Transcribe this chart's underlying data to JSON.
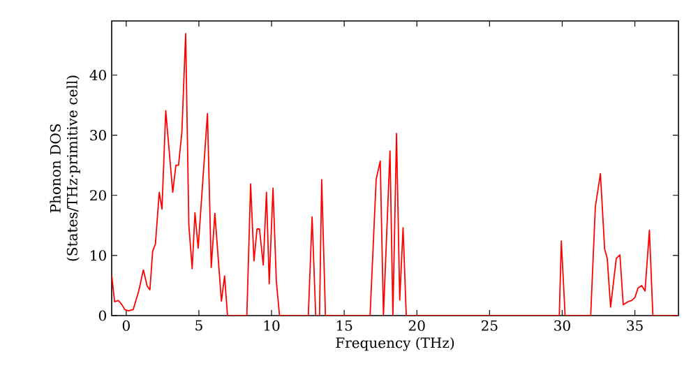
{
  "chart_data": {
    "type": "line",
    "xlabel": "Frequency (THz)",
    "ylabel": "Phonon DOS (States/THz·primitive cell)",
    "xlim": [
      -1,
      38
    ],
    "ylim": [
      0,
      49
    ],
    "xticks": [
      0,
      5,
      10,
      15,
      20,
      25,
      30,
      35
    ],
    "yticks": [
      0,
      10,
      20,
      30,
      40
    ],
    "marker": "none",
    "line_style": "solid",
    "series": [
      {
        "color": "#ff0000",
        "x": [
          -1,
          -0.8,
          -0.55,
          -0.32,
          -0.1,
          0.16,
          0.48,
          0.86,
          1.18,
          1.44,
          1.63,
          1.82,
          2.01,
          2.27,
          2.46,
          2.72,
          3.2,
          3.42,
          3.6,
          3.83,
          4.09,
          4.31,
          4.54,
          4.73,
          4.95,
          5.59,
          5.85,
          6.1,
          6.55,
          6.77,
          6.97,
          8.3,
          8.56,
          8.79,
          9.0,
          9.17,
          9.43,
          9.65,
          9.84,
          10.1,
          10.33,
          10.55,
          12.53,
          12.79,
          13.04,
          13.3,
          13.45,
          13.71,
          16.78,
          17.2,
          17.48,
          17.7,
          18.15,
          18.35,
          18.6,
          18.82,
          19.05,
          19.27,
          29.8,
          29.94,
          30.2,
          31.96,
          32.28,
          32.63,
          32.92,
          33.1,
          33.33,
          33.72,
          33.97,
          34.2,
          34.52,
          34.78,
          35.0,
          35.22,
          35.47,
          35.7,
          36.0,
          36.24,
          38
        ],
        "values": [
          6.8,
          2.3,
          2.5,
          1.9,
          1,
          0.8,
          1,
          4.1,
          7.6,
          4.9,
          4.3,
          10.7,
          11.9,
          20.5,
          17.7,
          34.1,
          20.5,
          25,
          25,
          30.5,
          46.9,
          15,
          7.8,
          17.1,
          11.2,
          33.6,
          8,
          17,
          2.4,
          6.6,
          0,
          0,
          21.9,
          9.1,
          14.4,
          14.4,
          8.4,
          20.5,
          5.3,
          21.2,
          5.7,
          0,
          0,
          16.4,
          0,
          0,
          22.6,
          0,
          0,
          22.7,
          25.7,
          0,
          27.4,
          0,
          30.3,
          2.6,
          14.6,
          0,
          0,
          12.4,
          0,
          0,
          18.1,
          23.6,
          11.1,
          9.5,
          1.4,
          9.5,
          10.1,
          1.8,
          2.3,
          2.5,
          3,
          4.6,
          5,
          4.1,
          14.2,
          0,
          0
        ]
      }
    ]
  }
}
